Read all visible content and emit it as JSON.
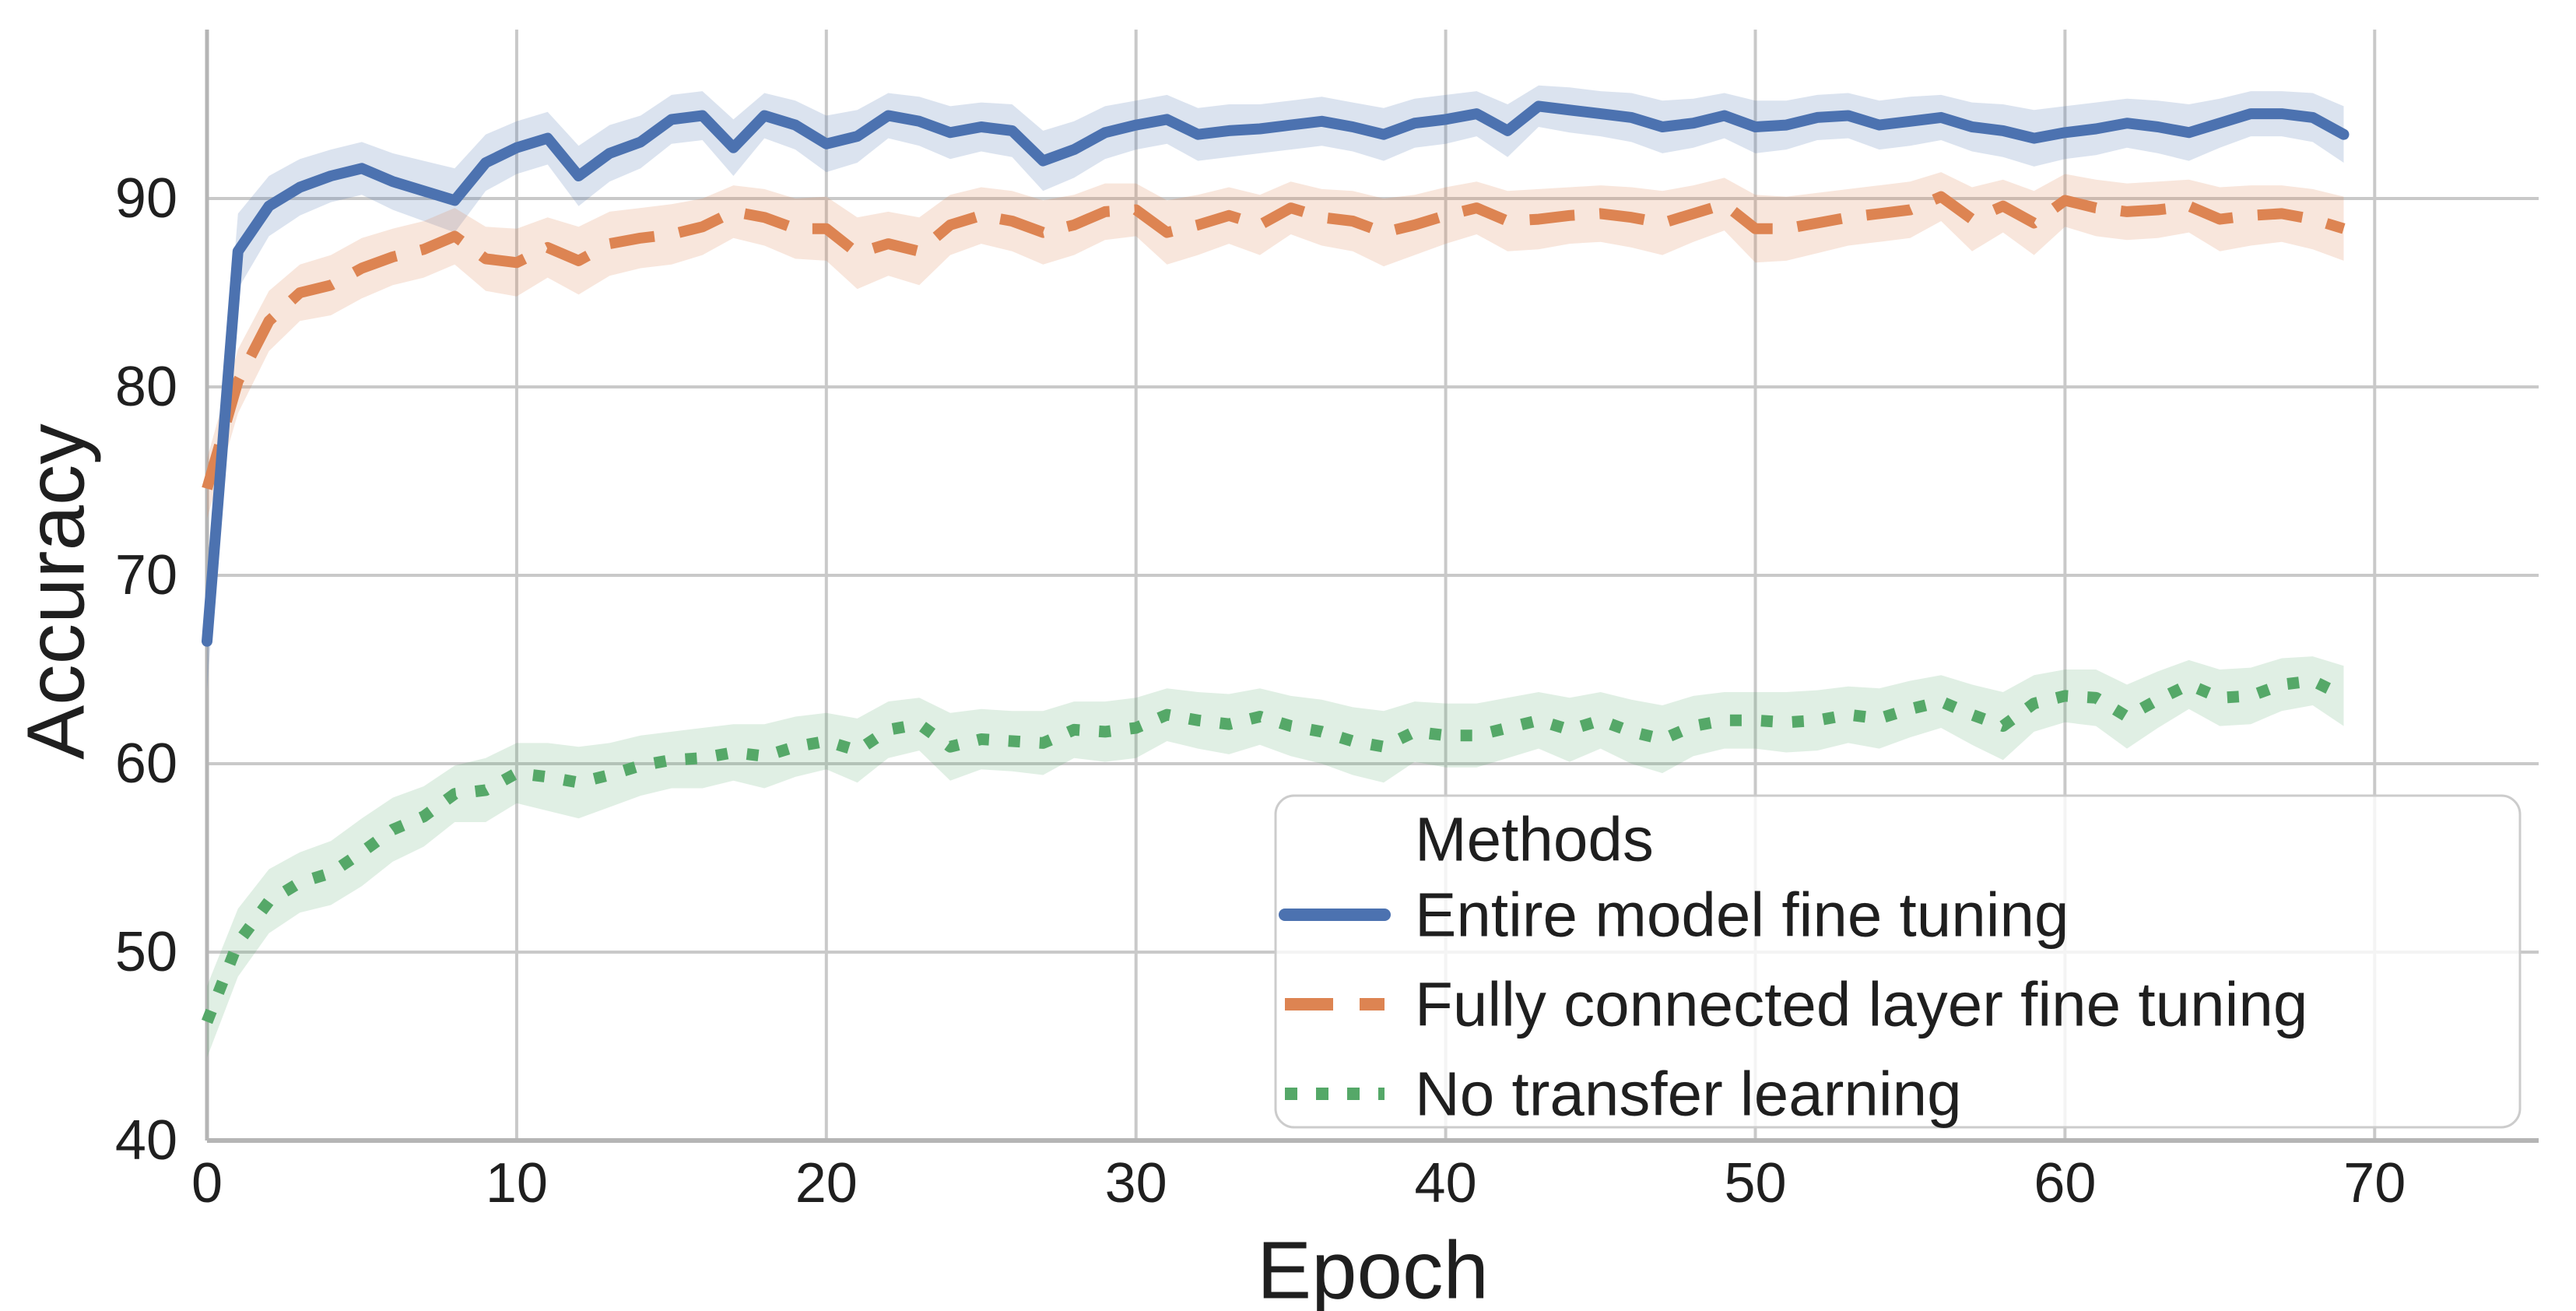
{
  "figure": {
    "background": "#ffffff",
    "grid_color": "#c9c9c9",
    "spine_color": "#b5b5b5",
    "text_color": "#1f1f1f"
  },
  "axes": {
    "xlabel": "Epoch",
    "ylabel": "Accuracy",
    "xticks": [
      0,
      10,
      20,
      30,
      40,
      50,
      60,
      70
    ],
    "yticks": [
      40,
      50,
      60,
      70,
      80,
      90
    ]
  },
  "legend": {
    "title": "Methods",
    "frame_color": "#cccccc",
    "fill": "rgba(255,255,255,0.8)"
  },
  "chart_data": {
    "type": "line",
    "title": "",
    "xlabel": "Epoch",
    "ylabel": "Accuracy",
    "xlim": [
      0,
      75.3
    ],
    "ylim": [
      40,
      99
    ],
    "grid": true,
    "legend_position": "lower right",
    "legend_title": "Methods",
    "x": [
      0,
      1,
      2,
      3,
      4,
      5,
      6,
      7,
      8,
      9,
      10,
      11,
      12,
      13,
      14,
      15,
      16,
      17,
      18,
      19,
      20,
      21,
      22,
      23,
      24,
      25,
      26,
      27,
      28,
      29,
      30,
      31,
      32,
      33,
      34,
      35,
      36,
      37,
      38,
      39,
      40,
      41,
      42,
      43,
      44,
      45,
      46,
      47,
      48,
      49,
      50,
      51,
      52,
      53,
      54,
      55,
      56,
      57,
      58,
      59,
      60,
      61,
      62,
      63,
      64,
      65,
      66,
      67,
      68,
      69
    ],
    "series": [
      {
        "name": "Entire model fine tuning",
        "color": "#4C72B0",
        "linestyle": "solid",
        "band_alpha": 0.2,
        "values": [
          66.5,
          87.2,
          89.6,
          90.6,
          91.2,
          91.6,
          90.9,
          90.4,
          89.9,
          91.9,
          92.7,
          93.2,
          91.2,
          92.4,
          93.0,
          94.2,
          94.4,
          92.7,
          94.4,
          93.9,
          92.9,
          93.3,
          94.4,
          94.1,
          93.5,
          93.8,
          93.6,
          92.0,
          92.6,
          93.5,
          93.9,
          94.2,
          93.4,
          93.6,
          93.7,
          93.9,
          94.1,
          93.8,
          93.4,
          94.0,
          94.2,
          94.5,
          93.6,
          94.9,
          94.7,
          94.5,
          94.3,
          93.8,
          94.0,
          94.4,
          93.8,
          93.9,
          94.3,
          94.4,
          93.9,
          94.1,
          94.3,
          93.8,
          93.6,
          93.2,
          93.5,
          93.7,
          94.0,
          93.8,
          93.5,
          94.0,
          94.5,
          94.5,
          94.3,
          93.4
        ],
        "ci": [
          2.6,
          2.0,
          1.6,
          1.5,
          1.4,
          1.4,
          1.5,
          1.6,
          1.7,
          1.5,
          1.4,
          1.4,
          1.6,
          1.5,
          1.4,
          1.3,
          1.3,
          1.5,
          1.2,
          1.3,
          1.5,
          1.4,
          1.2,
          1.3,
          1.4,
          1.3,
          1.4,
          1.6,
          1.5,
          1.4,
          1.3,
          1.3,
          1.4,
          1.4,
          1.3,
          1.3,
          1.3,
          1.3,
          1.4,
          1.3,
          1.3,
          1.2,
          1.4,
          1.1,
          1.2,
          1.2,
          1.3,
          1.4,
          1.3,
          1.2,
          1.4,
          1.3,
          1.2,
          1.2,
          1.3,
          1.3,
          1.2,
          1.3,
          1.4,
          1.5,
          1.4,
          1.4,
          1.3,
          1.4,
          1.5,
          1.3,
          1.2,
          1.2,
          1.3,
          1.5
        ]
      },
      {
        "name": "Fully connected layer fine tuning",
        "color": "#DD8452",
        "linestyle": "dashed",
        "band_alpha": 0.2,
        "values": [
          74.6,
          80.3,
          83.5,
          85.0,
          85.4,
          86.3,
          86.9,
          87.3,
          88.0,
          86.8,
          86.6,
          87.4,
          86.7,
          87.6,
          87.9,
          88.1,
          88.5,
          89.3,
          89.0,
          88.4,
          88.4,
          87.1,
          87.6,
          87.2,
          88.6,
          89.1,
          88.8,
          88.2,
          88.6,
          89.3,
          89.4,
          88.2,
          88.6,
          89.1,
          88.6,
          89.5,
          89.0,
          88.8,
          88.2,
          88.6,
          89.1,
          89.5,
          88.8,
          88.9,
          89.1,
          89.2,
          89.0,
          88.7,
          89.2,
          89.7,
          88.4,
          88.4,
          88.7,
          89.0,
          89.2,
          89.4,
          90.1,
          88.9,
          89.6,
          88.7,
          89.9,
          89.5,
          89.3,
          89.4,
          89.6,
          88.9,
          89.1,
          89.2,
          88.9,
          88.4
        ],
        "ci": [
          1.6,
          1.7,
          1.6,
          1.5,
          1.6,
          1.6,
          1.5,
          1.5,
          1.5,
          1.7,
          1.8,
          1.6,
          1.8,
          1.7,
          1.6,
          1.6,
          1.5,
          1.4,
          1.5,
          1.6,
          1.7,
          1.9,
          1.7,
          1.8,
          1.6,
          1.5,
          1.6,
          1.7,
          1.6,
          1.5,
          1.4,
          1.7,
          1.6,
          1.5,
          1.6,
          1.4,
          1.5,
          1.6,
          1.8,
          1.6,
          1.5,
          1.4,
          1.6,
          1.6,
          1.5,
          1.5,
          1.6,
          1.7,
          1.5,
          1.4,
          1.8,
          1.7,
          1.6,
          1.5,
          1.5,
          1.5,
          1.3,
          1.7,
          1.4,
          1.7,
          1.4,
          1.5,
          1.5,
          1.5,
          1.4,
          1.7,
          1.6,
          1.5,
          1.6,
          1.7
        ]
      },
      {
        "name": "No transfer learning",
        "color": "#55A868",
        "linestyle": "dotted",
        "band_alpha": 0.18,
        "values": [
          46.3,
          50.5,
          52.7,
          53.7,
          54.2,
          55.3,
          56.5,
          57.2,
          58.4,
          58.6,
          59.5,
          59.3,
          59.0,
          59.4,
          59.9,
          60.2,
          60.3,
          60.6,
          60.4,
          60.9,
          61.2,
          60.7,
          61.8,
          62.1,
          60.9,
          61.3,
          61.2,
          61.1,
          61.8,
          61.7,
          61.9,
          62.6,
          62.3,
          62.1,
          62.5,
          62.0,
          61.7,
          61.2,
          60.9,
          61.7,
          61.5,
          61.5,
          61.9,
          62.3,
          61.8,
          62.3,
          61.7,
          61.3,
          62.0,
          62.3,
          62.3,
          62.2,
          62.3,
          62.6,
          62.4,
          62.9,
          63.3,
          62.6,
          62.0,
          63.2,
          63.6,
          63.5,
          62.5,
          63.4,
          64.2,
          63.5,
          63.6,
          64.2,
          64.4,
          63.6
        ],
        "ci": [
          1.9,
          1.8,
          1.7,
          1.6,
          1.7,
          1.8,
          1.7,
          1.6,
          1.5,
          1.7,
          1.6,
          1.8,
          1.9,
          1.7,
          1.6,
          1.5,
          1.6,
          1.5,
          1.7,
          1.6,
          1.5,
          1.7,
          1.5,
          1.4,
          1.8,
          1.6,
          1.6,
          1.7,
          1.5,
          1.6,
          1.6,
          1.4,
          1.5,
          1.6,
          1.5,
          1.6,
          1.7,
          1.8,
          1.9,
          1.6,
          1.7,
          1.7,
          1.6,
          1.5,
          1.7,
          1.5,
          1.7,
          1.8,
          1.6,
          1.5,
          1.5,
          1.6,
          1.6,
          1.5,
          1.6,
          1.5,
          1.4,
          1.6,
          1.8,
          1.5,
          1.4,
          1.5,
          1.7,
          1.5,
          1.3,
          1.5,
          1.5,
          1.4,
          1.3,
          1.6
        ]
      }
    ]
  }
}
